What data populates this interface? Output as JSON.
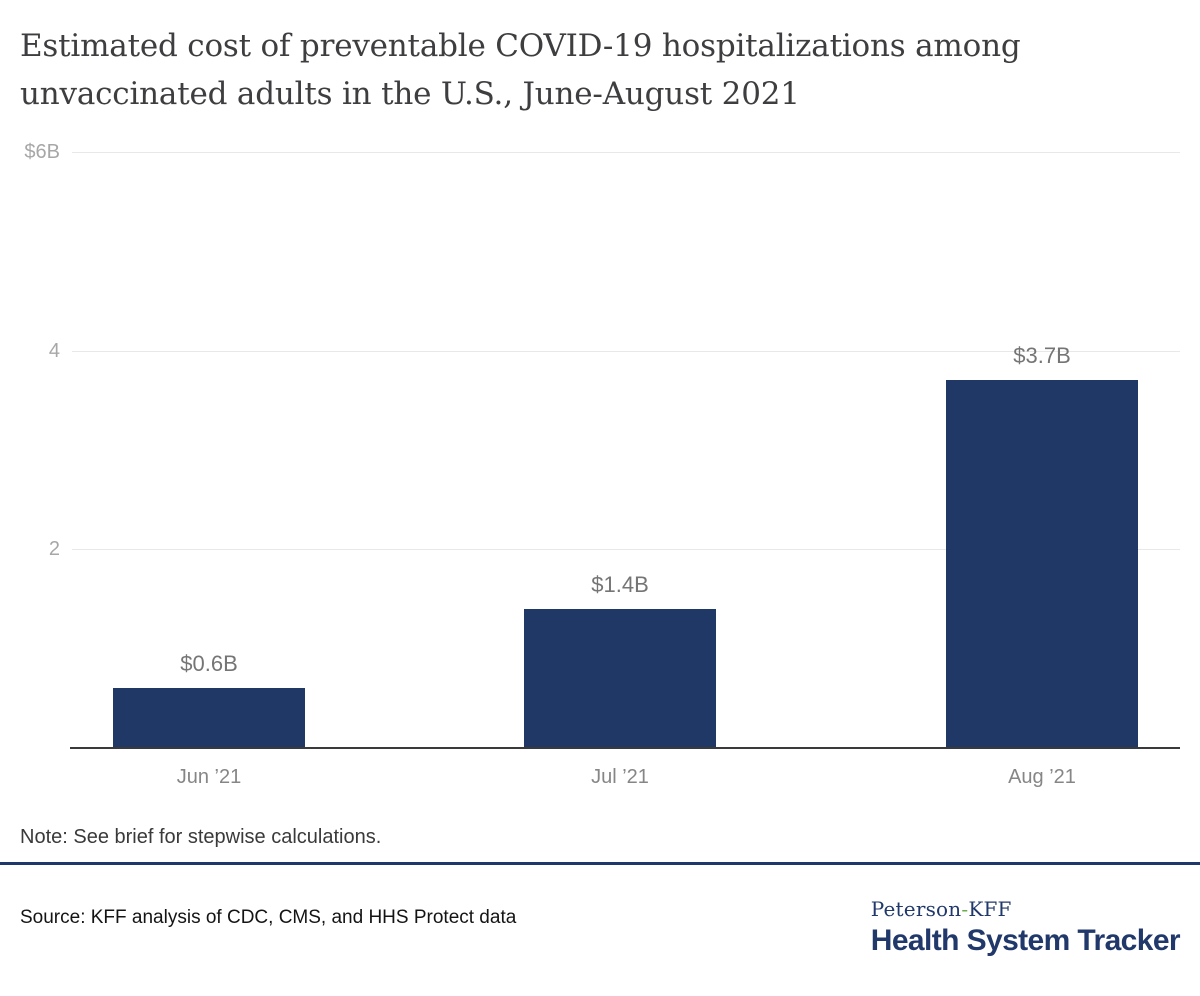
{
  "title": "Estimated cost of preventable COVID-19 hospitalizations among unvaccinated adults in the U.S., June-August 2021",
  "chart_data": {
    "type": "bar",
    "categories": [
      "Jun ’21",
      "Jul ’21",
      "Aug ’21"
    ],
    "values": [
      0.6,
      1.4,
      3.7
    ],
    "value_labels": [
      "$0.6B",
      "$1.4B",
      "$3.7B"
    ],
    "y_ticks": [
      {
        "value": 6,
        "label": "$6B"
      },
      {
        "value": 4,
        "label": "4"
      },
      {
        "value": 2,
        "label": "2"
      }
    ],
    "ylim": [
      0,
      6
    ],
    "xlabel": "",
    "ylabel": "",
    "grid": true,
    "legend": "none",
    "bar_color": "#1f3865"
  },
  "note": "Note: See brief for stepwise calculations.",
  "source": "Source: KFF analysis of CDC, CMS, and HHS Protect data",
  "logo": {
    "line1_part1": "Peterson",
    "hyphen": "-",
    "line1_part2": "KFF",
    "line2": "Health System Tracker"
  },
  "colors": {
    "bar_navy": "#1f3865",
    "brand_navy": "#21386b",
    "rule_navy": "#1f386b",
    "logo_green": "#6aab4a",
    "gridline_gray": "#e8e8e8",
    "axis_dark": "#3a3a3a",
    "tick_gray": "#a7a7a7",
    "label_gray": "#757575"
  }
}
